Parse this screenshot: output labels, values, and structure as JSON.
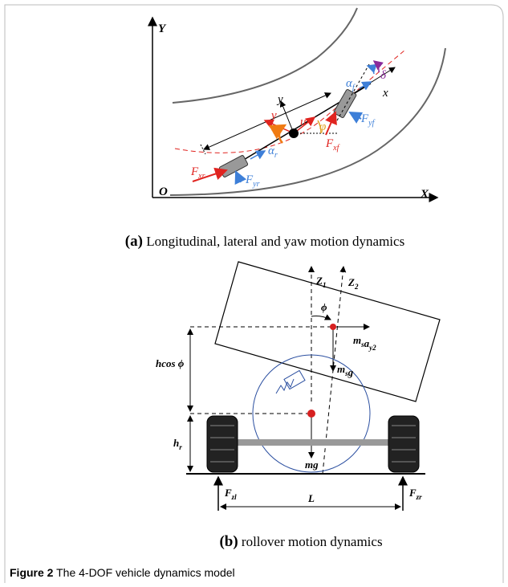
{
  "panel_a": {
    "labels": {
      "Y": [
        {
          "text": "Y"
        }
      ],
      "O": [
        {
          "text": "O"
        }
      ],
      "X": [
        {
          "text": "X"
        }
      ],
      "y": [
        {
          "text": "y"
        }
      ],
      "x": [
        {
          "text": "x"
        }
      ],
      "v": [
        {
          "text": "v"
        }
      ],
      "u": [
        {
          "text": "u"
        }
      ],
      "phi": [
        {
          "text": "φ"
        }
      ],
      "delta": [
        {
          "text": "δ"
        }
      ],
      "alpha_f": [
        {
          "text": "α",
          "sub": "f"
        }
      ],
      "F_yf": [
        {
          "text": "F",
          "sub": "yf"
        }
      ],
      "F_xf": [
        {
          "text": "F",
          "sub": "xf"
        }
      ],
      "alpha_r": [
        {
          "text": "α",
          "sub": "r"
        }
      ],
      "F_yr": [
        {
          "text": "F",
          "sub": "yr"
        }
      ],
      "F_xr": [
        {
          "text": "F",
          "sub": "xr"
        }
      ]
    },
    "caption_tag": "(a)",
    "caption": "Longitudinal, lateral and yaw motion dynamics"
  },
  "panel_b": {
    "labels": {
      "Z1": [
        {
          "text": "Z",
          "sub": "1"
        }
      ],
      "Z2": [
        {
          "text": "Z",
          "sub": "2"
        }
      ],
      "phi": [
        {
          "text": "ϕ"
        }
      ],
      "may": [
        {
          "text": "m",
          "sub": "s"
        },
        {
          "text": "a",
          "sub": "y2"
        }
      ],
      "msg": [
        {
          "text": "m",
          "sub": "s"
        },
        {
          "text": "g"
        }
      ],
      "hcos": [
        {
          "text": "hcos ϕ"
        }
      ],
      "hr": [
        {
          "text": "h",
          "sub": "r"
        }
      ],
      "mg": [
        {
          "text": "mg"
        }
      ],
      "Fzl": [
        {
          "text": "F",
          "sub": "zl"
        }
      ],
      "L": [
        {
          "text": "L"
        }
      ],
      "Fzr": [
        {
          "text": "F",
          "sub": "zr"
        }
      ]
    },
    "caption_tag": "(b)",
    "caption": "rollover motion dynamics"
  },
  "figure": {
    "label": "Figure 2",
    "caption": "The 4-DOF vehicle dynamics model"
  }
}
